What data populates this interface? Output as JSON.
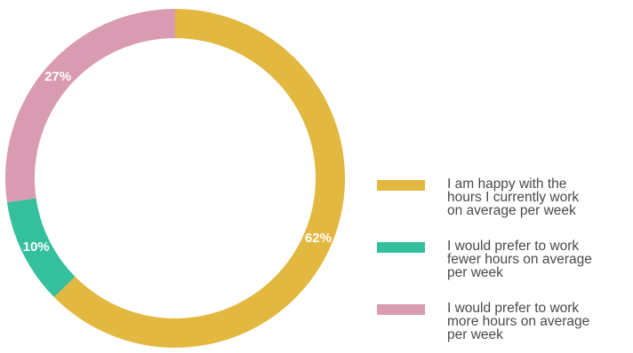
{
  "chart_data": {
    "type": "pie",
    "donut": true,
    "legend_position": "right",
    "slices": [
      {
        "label": "I am happy with the hours I currently work on average per week",
        "value": 62,
        "display": "62%",
        "color": "#e2b840"
      },
      {
        "label": "I would prefer to work fewer hours on average per week",
        "value": 10,
        "display": "10%",
        "color": "#34c09d"
      },
      {
        "label": "I would prefer to work more hours on average per week",
        "value": 27,
        "display": "27%",
        "color": "#d99bb1"
      }
    ]
  },
  "legend": {
    "items": [
      {
        "lines": [
          "I am happy with the",
          "hours I currently work",
          "on average per week"
        ],
        "color": "#e2b840"
      },
      {
        "lines": [
          "I would prefer to work",
          "fewer hours on average",
          "per week"
        ],
        "color": "#34c09d"
      },
      {
        "lines": [
          "I would prefer to work",
          "more hours on average",
          "per week"
        ],
        "color": "#d99bb1"
      }
    ]
  }
}
